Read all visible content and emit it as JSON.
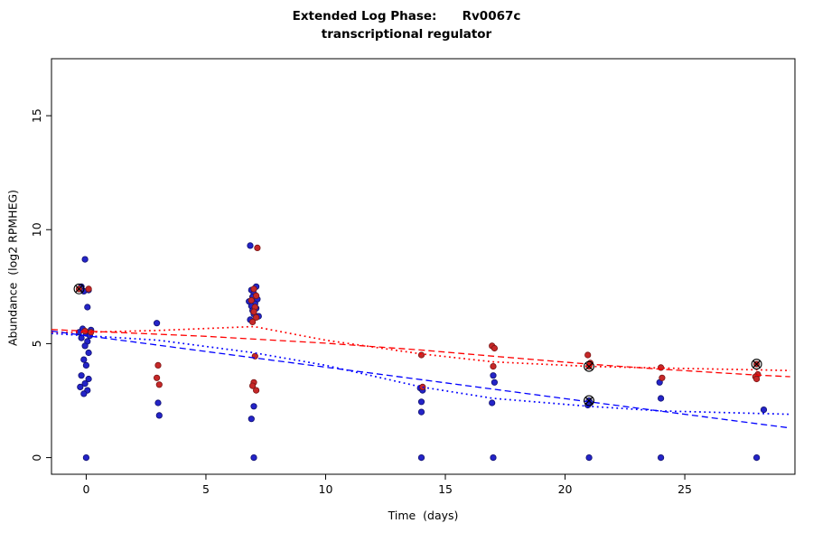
{
  "chart_data": {
    "type": "scatter",
    "title_line1": "Extended Log Phase:      Rv0067c",
    "title_line2": "transcriptional regulator",
    "xlabel": "Time  (days)",
    "ylabel": "Abundance  (log2 RPMHEG)",
    "xlim": [
      -1.45,
      29.6
    ],
    "ylim": [
      -0.73,
      17.5
    ],
    "xticks": [
      0,
      5,
      10,
      15,
      20,
      25
    ],
    "yticks": [
      0,
      5,
      10,
      15
    ],
    "grid": false,
    "legend": "none",
    "series": [
      {
        "name": "blue-points",
        "kind": "points",
        "color": "#2424c8",
        "stroke": "#10106e",
        "points": [
          [
            -0.05,
            8.7
          ],
          [
            -0.2,
            7.5
          ],
          [
            0.1,
            7.35
          ],
          [
            -0.1,
            7.3
          ],
          [
            0.05,
            6.6
          ],
          [
            -0.15,
            5.65
          ],
          [
            0.2,
            5.6
          ],
          [
            -0.3,
            5.5
          ],
          [
            0.0,
            5.45
          ],
          [
            0.15,
            5.35
          ],
          [
            -0.2,
            5.25
          ],
          [
            0.05,
            5.1
          ],
          [
            -0.05,
            4.9
          ],
          [
            0.1,
            4.6
          ],
          [
            -0.1,
            4.3
          ],
          [
            0.0,
            4.05
          ],
          [
            -0.2,
            3.6
          ],
          [
            0.1,
            3.45
          ],
          [
            -0.05,
            3.25
          ],
          [
            -0.25,
            3.1
          ],
          [
            0.05,
            2.95
          ],
          [
            -0.1,
            2.8
          ],
          [
            0.0,
            0.0
          ],
          [
            2.95,
            5.9
          ],
          [
            3.0,
            2.4
          ],
          [
            3.05,
            1.85
          ],
          [
            6.85,
            9.3
          ],
          [
            7.1,
            7.5
          ],
          [
            6.9,
            7.35
          ],
          [
            7.0,
            7.2
          ],
          [
            6.95,
            7.05
          ],
          [
            7.15,
            6.95
          ],
          [
            6.8,
            6.85
          ],
          [
            7.05,
            6.75
          ],
          [
            6.9,
            6.65
          ],
          [
            7.1,
            6.55
          ],
          [
            6.95,
            6.45
          ],
          [
            7.0,
            6.3
          ],
          [
            7.2,
            6.2
          ],
          [
            6.85,
            6.05
          ],
          [
            7.0,
            2.25
          ],
          [
            6.9,
            1.7
          ],
          [
            7.0,
            0.0
          ],
          [
            13.95,
            3.05
          ],
          [
            14.05,
            2.95
          ],
          [
            14.0,
            2.45
          ],
          [
            14.0,
            2.0
          ],
          [
            14.0,
            0.0
          ],
          [
            17.0,
            3.6
          ],
          [
            17.05,
            3.3
          ],
          [
            16.95,
            2.4
          ],
          [
            17.0,
            0.0
          ],
          [
            21.0,
            2.5
          ],
          [
            21.05,
            2.4
          ],
          [
            20.95,
            2.3
          ],
          [
            21.0,
            0.0
          ],
          [
            23.95,
            3.3
          ],
          [
            24.0,
            2.6
          ],
          [
            24.0,
            0.0
          ],
          [
            28.3,
            2.1
          ],
          [
            28.0,
            0.0
          ]
        ]
      },
      {
        "name": "red-points",
        "kind": "points",
        "color": "#c62828",
        "stroke": "#7a1414",
        "points": [
          [
            -0.3,
            7.4
          ],
          [
            0.1,
            7.4
          ],
          [
            -0.05,
            5.55
          ],
          [
            0.2,
            5.5
          ],
          [
            3.0,
            4.05
          ],
          [
            2.95,
            3.5
          ],
          [
            3.05,
            3.2
          ],
          [
            7.15,
            9.2
          ],
          [
            7.0,
            7.4
          ],
          [
            7.1,
            7.1
          ],
          [
            6.9,
            6.9
          ],
          [
            7.05,
            6.6
          ],
          [
            7.0,
            6.4
          ],
          [
            7.1,
            6.15
          ],
          [
            6.95,
            5.95
          ],
          [
            7.05,
            4.45
          ],
          [
            7.0,
            3.3
          ],
          [
            6.95,
            3.15
          ],
          [
            7.1,
            2.95
          ],
          [
            14.0,
            4.5
          ],
          [
            14.05,
            3.1
          ],
          [
            16.95,
            4.9
          ],
          [
            17.05,
            4.8
          ],
          [
            17.0,
            4.0
          ],
          [
            20.95,
            4.5
          ],
          [
            21.05,
            4.15
          ],
          [
            21.0,
            4.0
          ],
          [
            24.0,
            3.95
          ],
          [
            24.05,
            3.5
          ],
          [
            28.0,
            4.1
          ],
          [
            28.05,
            3.65
          ],
          [
            27.95,
            3.55
          ],
          [
            28.0,
            3.45
          ]
        ]
      },
      {
        "name": "red-dashed-trend",
        "kind": "line",
        "dash": "dashed",
        "color": "#ff0000",
        "points": [
          [
            -1.45,
            5.62
          ],
          [
            0,
            5.55
          ],
          [
            5,
            5.32
          ],
          [
            10,
            5.02
          ],
          [
            14,
            4.72
          ],
          [
            17,
            4.45
          ],
          [
            21,
            4.1
          ],
          [
            24,
            3.88
          ],
          [
            28,
            3.62
          ],
          [
            29.4,
            3.55
          ]
        ]
      },
      {
        "name": "red-dotted-trend",
        "kind": "line",
        "dash": "dotted",
        "color": "#ff0000",
        "points": [
          [
            -1.45,
            5.5
          ],
          [
            0,
            5.5
          ],
          [
            3,
            5.58
          ],
          [
            7,
            5.75
          ],
          [
            10,
            5.15
          ],
          [
            14,
            4.55
          ],
          [
            17,
            4.2
          ],
          [
            21,
            4.0
          ],
          [
            24,
            3.93
          ],
          [
            28,
            3.85
          ],
          [
            29.4,
            3.82
          ]
        ]
      },
      {
        "name": "blue-dashed-trend",
        "kind": "line",
        "dash": "dashed",
        "color": "#0000ff",
        "points": [
          [
            -1.45,
            5.55
          ],
          [
            7,
            4.38
          ],
          [
            14,
            3.42
          ],
          [
            21,
            2.45
          ],
          [
            29.4,
            1.3
          ]
        ]
      },
      {
        "name": "blue-dotted-trend",
        "kind": "line",
        "dash": "dotted",
        "color": "#0000ff",
        "points": [
          [
            -1.45,
            5.45
          ],
          [
            0,
            5.35
          ],
          [
            3,
            5.15
          ],
          [
            7,
            4.6
          ],
          [
            10,
            4.05
          ],
          [
            14,
            3.1
          ],
          [
            17,
            2.6
          ],
          [
            21,
            2.25
          ],
          [
            24,
            2.05
          ],
          [
            26.5,
            1.98
          ],
          [
            29.4,
            1.9
          ]
        ]
      }
    ],
    "flagged_points": {
      "marker": "circle-x",
      "color": "#000000",
      "points": [
        [
          -0.3,
          7.4
        ],
        [
          21.0,
          4.0
        ],
        [
          21.0,
          2.5
        ],
        [
          28.0,
          4.1
        ]
      ]
    }
  }
}
